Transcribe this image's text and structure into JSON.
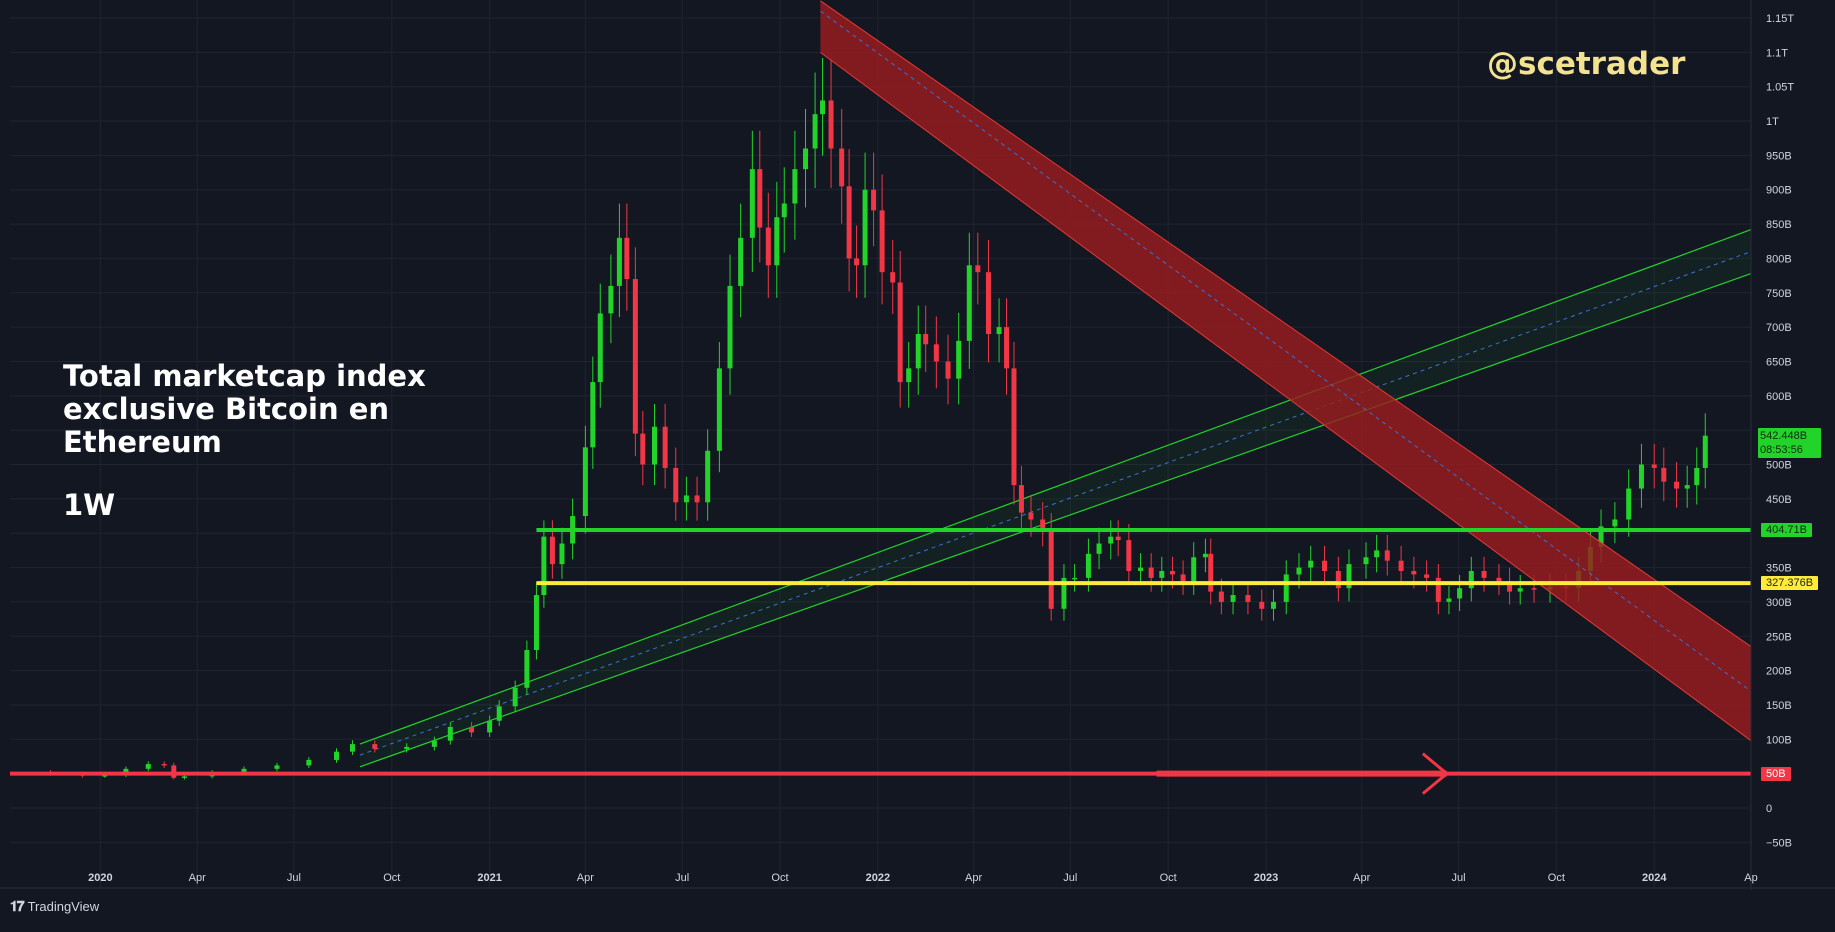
{
  "watermark": "@scetrader",
  "title_lines": [
    "Total marketcap index",
    "exclusive Bitcoin en",
    "Ethereum"
  ],
  "timeframe": "1W",
  "brand": "TradingView",
  "brand_icon": "tradingview-logo-icon",
  "price_label": {
    "value": "542.448B",
    "countdown": "08:53:56"
  },
  "level_labels": {
    "green": "404.71B",
    "yellow": "327.376B",
    "red": "50B"
  },
  "colors": {
    "background": "#131722",
    "up": "#22d32a",
    "down": "#f23645",
    "grid": "#1f2430",
    "axis_text": "#d1d4dc",
    "support_green": "#22d32a",
    "support_yellow": "#ffeb3b",
    "support_red": "#f23645",
    "downtrend_channel": "#9b1c1f",
    "uptrend_channel": "#22d32a",
    "watermark": "#f3e28f"
  },
  "chart_data": {
    "type": "candlestick",
    "title": "Total marketcap index exclusive Bitcoin en Ethereum",
    "timeframe": "1W",
    "y_unit": "B (USD)",
    "ylim": [
      -75,
      1175
    ],
    "y_ticks": [
      -50,
      0,
      50,
      100,
      150,
      200,
      250,
      300,
      350,
      400,
      450,
      500,
      550,
      600,
      650,
      700,
      750,
      800,
      850,
      900,
      950,
      1000,
      1050,
      1100,
      1150
    ],
    "y_tick_labels": [
      "−50B",
      "0",
      "",
      "100B",
      "150B",
      "200B",
      "250B",
      "300B",
      "350B",
      "",
      "450B",
      "500B",
      "",
      "600B",
      "650B",
      "700B",
      "750B",
      "800B",
      "850B",
      "900B",
      "950B",
      "1T",
      "1.05T",
      "1.1T",
      "1.15T"
    ],
    "x_ticks": [
      {
        "label": "2020",
        "date": "2020-01-01"
      },
      {
        "label": "Apr",
        "date": "2020-04-01"
      },
      {
        "label": "Jul",
        "date": "2020-07-01"
      },
      {
        "label": "Oct",
        "date": "2020-10-01"
      },
      {
        "label": "2021",
        "date": "2021-01-01"
      },
      {
        "label": "Apr",
        "date": "2021-04-01"
      },
      {
        "label": "Jul",
        "date": "2021-07-01"
      },
      {
        "label": "Oct",
        "date": "2021-10-01"
      },
      {
        "label": "2022",
        "date": "2022-01-01"
      },
      {
        "label": "Apr",
        "date": "2022-04-01"
      },
      {
        "label": "Jul",
        "date": "2022-07-01"
      },
      {
        "label": "Oct",
        "date": "2022-10-01"
      },
      {
        "label": "2023",
        "date": "2023-01-01"
      },
      {
        "label": "Apr",
        "date": "2023-04-01"
      },
      {
        "label": "Jul",
        "date": "2023-07-01"
      },
      {
        "label": "Oct",
        "date": "2023-10-01"
      },
      {
        "label": "2024",
        "date": "2024-01-01"
      },
      {
        "label": "Ap",
        "date": "2024-04-01"
      }
    ],
    "xlim": [
      "2019-10-08",
      "2024-04-01"
    ],
    "grid": true,
    "last_price": 542.448,
    "close_series": [
      [
        "2019-10-10",
        52
      ],
      [
        "2019-11-15",
        50
      ],
      [
        "2019-12-15",
        47
      ],
      [
        "2020-01-05",
        48
      ],
      [
        "2020-01-25",
        57
      ],
      [
        "2020-02-15",
        64
      ],
      [
        "2020-03-01",
        62
      ],
      [
        "2020-03-10",
        44
      ],
      [
        "2020-03-20",
        46
      ],
      [
        "2020-04-15",
        52
      ],
      [
        "2020-05-15",
        57
      ],
      [
        "2020-06-15",
        62
      ],
      [
        "2020-07-15",
        70
      ],
      [
        "2020-08-10",
        82
      ],
      [
        "2020-08-25",
        93
      ],
      [
        "2020-09-15",
        86
      ],
      [
        "2020-10-15",
        89
      ],
      [
        "2020-11-10",
        98
      ],
      [
        "2020-11-25",
        118
      ],
      [
        "2020-12-15",
        110
      ],
      [
        "2021-01-01",
        127
      ],
      [
        "2021-01-10",
        148
      ],
      [
        "2021-01-25",
        175
      ],
      [
        "2021-02-05",
        230
      ],
      [
        "2021-02-14",
        310
      ],
      [
        "2021-02-21",
        395
      ],
      [
        "2021-03-01",
        355
      ],
      [
        "2021-03-10",
        385
      ],
      [
        "2021-03-20",
        425
      ],
      [
        "2021-04-01",
        525
      ],
      [
        "2021-04-08",
        620
      ],
      [
        "2021-04-15",
        720
      ],
      [
        "2021-04-25",
        760
      ],
      [
        "2021-05-03",
        830
      ],
      [
        "2021-05-10",
        770
      ],
      [
        "2021-05-18",
        545
      ],
      [
        "2021-05-25",
        500
      ],
      [
        "2021-06-05",
        555
      ],
      [
        "2021-06-15",
        495
      ],
      [
        "2021-06-25",
        445
      ],
      [
        "2021-07-05",
        455
      ],
      [
        "2021-07-15",
        445
      ],
      [
        "2021-07-25",
        520
      ],
      [
        "2021-08-05",
        640
      ],
      [
        "2021-08-15",
        760
      ],
      [
        "2021-08-25",
        830
      ],
      [
        "2021-09-05",
        930
      ],
      [
        "2021-09-12",
        845
      ],
      [
        "2021-09-20",
        790
      ],
      [
        "2021-09-28",
        860
      ],
      [
        "2021-10-05",
        880
      ],
      [
        "2021-10-15",
        930
      ],
      [
        "2021-10-25",
        960
      ],
      [
        "2021-11-03",
        1010
      ],
      [
        "2021-11-10",
        1030
      ],
      [
        "2021-11-18",
        960
      ],
      [
        "2021-11-28",
        905
      ],
      [
        "2021-12-05",
        800
      ],
      [
        "2021-12-12",
        790
      ],
      [
        "2021-12-20",
        900
      ],
      [
        "2021-12-28",
        870
      ],
      [
        "2022-01-05",
        780
      ],
      [
        "2022-01-15",
        765
      ],
      [
        "2022-01-22",
        620
      ],
      [
        "2022-01-30",
        640
      ],
      [
        "2022-02-08",
        690
      ],
      [
        "2022-02-15",
        675
      ],
      [
        "2022-02-25",
        650
      ],
      [
        "2022-03-08",
        625
      ],
      [
        "2022-03-18",
        680
      ],
      [
        "2022-03-28",
        790
      ],
      [
        "2022-04-05",
        780
      ],
      [
        "2022-04-15",
        690
      ],
      [
        "2022-04-25",
        700
      ],
      [
        "2022-05-02",
        640
      ],
      [
        "2022-05-09",
        470
      ],
      [
        "2022-05-16",
        430
      ],
      [
        "2022-05-25",
        420
      ],
      [
        "2022-06-05",
        405
      ],
      [
        "2022-06-13",
        290
      ],
      [
        "2022-06-25",
        335
      ],
      [
        "2022-07-05",
        335
      ],
      [
        "2022-07-18",
        370
      ],
      [
        "2022-07-28",
        385
      ],
      [
        "2022-08-08",
        395
      ],
      [
        "2022-08-15",
        390
      ],
      [
        "2022-08-25",
        345
      ],
      [
        "2022-09-05",
        350
      ],
      [
        "2022-09-15",
        335
      ],
      [
        "2022-09-25",
        345
      ],
      [
        "2022-10-05",
        340
      ],
      [
        "2022-10-15",
        330
      ],
      [
        "2022-10-25",
        365
      ],
      [
        "2022-11-05",
        370
      ],
      [
        "2022-11-10",
        315
      ],
      [
        "2022-11-20",
        300
      ],
      [
        "2022-12-01",
        310
      ],
      [
        "2022-12-15",
        300
      ],
      [
        "2022-12-28",
        290
      ],
      [
        "2023-01-08",
        300
      ],
      [
        "2023-01-20",
        340
      ],
      [
        "2023-02-01",
        350
      ],
      [
        "2023-02-12",
        360
      ],
      [
        "2023-02-25",
        345
      ],
      [
        "2023-03-10",
        320
      ],
      [
        "2023-03-20",
        355
      ],
      [
        "2023-04-05",
        365
      ],
      [
        "2023-04-15",
        375
      ],
      [
        "2023-04-25",
        360
      ],
      [
        "2023-05-08",
        345
      ],
      [
        "2023-05-20",
        340
      ],
      [
        "2023-06-01",
        335
      ],
      [
        "2023-06-12",
        300
      ],
      [
        "2023-06-22",
        305
      ],
      [
        "2023-07-02",
        320
      ],
      [
        "2023-07-13",
        345
      ],
      [
        "2023-07-25",
        335
      ],
      [
        "2023-08-08",
        330
      ],
      [
        "2023-08-18",
        315
      ],
      [
        "2023-08-28",
        320
      ],
      [
        "2023-09-10",
        318
      ],
      [
        "2023-09-25",
        322
      ],
      [
        "2023-10-10",
        320
      ],
      [
        "2023-10-22",
        345
      ],
      [
        "2023-11-02",
        380
      ],
      [
        "2023-11-12",
        410
      ],
      [
        "2023-11-25",
        420
      ],
      [
        "2023-12-08",
        465
      ],
      [
        "2023-12-20",
        500
      ],
      [
        "2024-01-01",
        495
      ],
      [
        "2024-01-10",
        475
      ],
      [
        "2024-01-22",
        465
      ],
      [
        "2024-02-01",
        470
      ],
      [
        "2024-02-10",
        495
      ],
      [
        "2024-02-18",
        542
      ]
    ],
    "horizontal_levels": [
      {
        "name": "404.71B",
        "value": 404.71,
        "color": "#22d32a",
        "from": "2021-02-14"
      },
      {
        "name": "327.376B",
        "value": 327.376,
        "color": "#ffeb3b",
        "from": "2021-02-14"
      },
      {
        "name": "50B",
        "value": 50,
        "color": "#f23645",
        "from": "2019-10-08"
      }
    ],
    "channels": [
      {
        "type": "down_channel",
        "color": "#9b1c1f",
        "start_date": "2021-11-08",
        "end_date": "2024-04-01",
        "upper": [
          1175,
          235
        ],
        "lower": [
          1100,
          98
        ],
        "mid": [
          1160,
          170
        ]
      },
      {
        "type": "up_channel",
        "color": "#22d32a",
        "start_date": "2020-09-01",
        "end_date": "2024-04-01",
        "upper": [
          93,
          842
        ],
        "lower": [
          60,
          778
        ],
        "mid": [
          77,
          810
        ]
      }
    ],
    "arrow": {
      "from_date": "2022-09-20",
      "to_date": "2023-06-20",
      "value": 50,
      "color": "#f23645"
    }
  }
}
